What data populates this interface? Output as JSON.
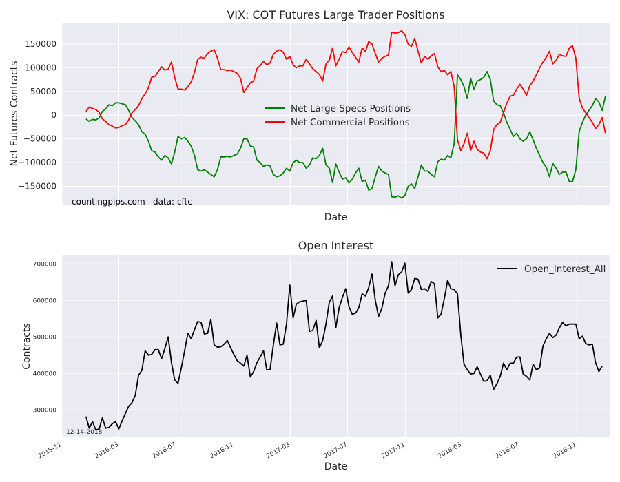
{
  "chart_data": [
    {
      "type": "line",
      "title": "VIX: COT Futures Large Trader Positions",
      "xlabel": "Date",
      "ylabel": "Net Futures Contracts",
      "ylim": [
        -190000,
        195000
      ],
      "xlim": [
        "2015-11-01",
        "2019-01-10"
      ],
      "yticks": [
        -150000,
        -100000,
        -50000,
        0,
        50000,
        100000,
        150000
      ],
      "ytick_labels": [
        "−150000",
        "−100000",
        "−50000",
        "0",
        "50000",
        "100000",
        "150000"
      ],
      "xticks": [
        "2015-11-01",
        "2016-03-01",
        "2016-07-01",
        "2016-11-01",
        "2017-03-01",
        "2017-07-01",
        "2017-11-01",
        "2018-03-01",
        "2018-07-01",
        "2018-11-01"
      ],
      "grid": true,
      "legend": "center",
      "annotations": [
        {
          "text": "countingpips.com",
          "x": "2015-11-12",
          "y": -190000
        },
        {
          "text": "data: cftc",
          "x": "2016-03-15",
          "y": -190000
        }
      ],
      "x_start": "2015-12-22",
      "x_step_days": 7,
      "series": [
        {
          "name": "Net Large Specs Positions",
          "color": "#008000",
          "values": [
            -8000,
            -13000,
            -9000,
            -10000,
            -6000,
            8000,
            13000,
            22000,
            20000,
            26000,
            26000,
            24000,
            22000,
            10000,
            -5000,
            -12000,
            -20000,
            -35000,
            -40000,
            -55000,
            -75000,
            -78000,
            -88000,
            -95000,
            -85000,
            -90000,
            -103000,
            -78000,
            -45000,
            -50000,
            -47000,
            -55000,
            -65000,
            -85000,
            -115000,
            -118000,
            -115000,
            -120000,
            -125000,
            -130000,
            -115000,
            -88000,
            -88000,
            -87000,
            -88000,
            -85000,
            -82000,
            -70000,
            -50000,
            -50000,
            -65000,
            -67000,
            -95000,
            -100000,
            -108000,
            -105000,
            -107000,
            -125000,
            -130000,
            -128000,
            -122000,
            -112000,
            -118000,
            -100000,
            -95000,
            -100000,
            -100000,
            -112000,
            -105000,
            -90000,
            -92000,
            -85000,
            -70000,
            -105000,
            -112000,
            -142000,
            -103000,
            -120000,
            -135000,
            -132000,
            -143000,
            -135000,
            -122000,
            -112000,
            -140000,
            -137000,
            -158000,
            -155000,
            -130000,
            -108000,
            -118000,
            -122000,
            -125000,
            -172000,
            -173000,
            -170000,
            -175000,
            -170000,
            -150000,
            -145000,
            -155000,
            -130000,
            -105000,
            -118000,
            -118000,
            -125000,
            -130000,
            -98000,
            -93000,
            -95000,
            -85000,
            -90000,
            -60000,
            85000,
            75000,
            60000,
            35000,
            78000,
            55000,
            72000,
            75000,
            80000,
            92000,
            75000,
            30000,
            22000,
            20000,
            5000,
            -15000,
            -30000,
            -45000,
            -38000,
            -50000,
            -55000,
            -50000,
            -35000,
            -52000,
            -70000,
            -85000,
            -100000,
            -110000,
            -130000,
            -102000,
            -112000,
            -125000,
            -120000,
            -120000,
            -140000,
            -140000,
            -115000,
            -35000,
            -15000,
            0,
            10000,
            20000,
            35000,
            28000,
            10000,
            40000
          ]
        },
        {
          "name": "Net Commercial Positions",
          "color": "#ff0000",
          "values": [
            8000,
            17000,
            14000,
            12000,
            6000,
            -8000,
            -13000,
            -20000,
            -23000,
            -27000,
            -26000,
            -22000,
            -20000,
            -10000,
            5000,
            12000,
            20000,
            35000,
            45000,
            58000,
            80000,
            82000,
            92000,
            102000,
            95000,
            97000,
            112000,
            80000,
            55000,
            55000,
            53000,
            60000,
            70000,
            90000,
            118000,
            122000,
            120000,
            130000,
            135000,
            138000,
            120000,
            96000,
            96000,
            94000,
            95000,
            92000,
            88000,
            78000,
            48000,
            58000,
            68000,
            72000,
            98000,
            104000,
            114000,
            106000,
            110000,
            128000,
            135000,
            138000,
            133000,
            118000,
            124000,
            106000,
            100000,
            104000,
            104000,
            118000,
            108000,
            98000,
            92000,
            86000,
            72000,
            108000,
            116000,
            142000,
            104000,
            118000,
            134000,
            132000,
            144000,
            132000,
            122000,
            112000,
            142000,
            134000,
            155000,
            150000,
            130000,
            112000,
            120000,
            124000,
            127000,
            175000,
            173000,
            174000,
            178000,
            170000,
            150000,
            145000,
            162000,
            135000,
            110000,
            124000,
            118000,
            125000,
            130000,
            102000,
            92000,
            94000,
            85000,
            92000,
            60000,
            -52000,
            -75000,
            -60000,
            -38000,
            -75000,
            -55000,
            -72000,
            -78000,
            -80000,
            -92000,
            -75000,
            -30000,
            -20000,
            -15000,
            5000,
            25000,
            40000,
            42000,
            55000,
            65000,
            55000,
            42000,
            62000,
            72000,
            85000,
            100000,
            112000,
            122000,
            135000,
            108000,
            116000,
            128000,
            125000,
            124000,
            142000,
            146000,
            120000,
            36000,
            15000,
            5000,
            -5000,
            -15000,
            -28000,
            -20000,
            -5000,
            -38000
          ]
        }
      ]
    },
    {
      "type": "line",
      "title": "Open Interest",
      "xlabel": "Date",
      "ylabel": "Contracts",
      "ylim": [
        225000,
        725000
      ],
      "xlim": [
        "2015-11-01",
        "2019-01-10"
      ],
      "yticks": [
        300000,
        400000,
        500000,
        600000,
        700000
      ],
      "ytick_labels": [
        "300000",
        "400000",
        "500000",
        "600000",
        "700000"
      ],
      "xticks": [
        "2015-11-01",
        "2016-03-01",
        "2016-07-01",
        "2016-11-01",
        "2017-03-01",
        "2017-07-01",
        "2017-11-01",
        "2018-03-01",
        "2018-07-01",
        "2018-11-01"
      ],
      "xtick_labels": [
        "2015-11",
        "2016-03",
        "2016-07",
        "2016-11",
        "2017-03",
        "2017-07",
        "2017-11",
        "2018-03",
        "2018-07",
        "2018-11"
      ],
      "grid": true,
      "legend": "top-right",
      "annotations": [
        {
          "text": "12-14-2018",
          "x": "2015-11-12",
          "y": 233000
        }
      ],
      "x_start": "2015-12-22",
      "x_step_days": 7,
      "series": [
        {
          "name": "Open_Interest_All",
          "color": "#000000",
          "values": [
            282000,
            250000,
            268000,
            245000,
            248000,
            278000,
            250000,
            252000,
            262000,
            268000,
            248000,
            270000,
            290000,
            310000,
            320000,
            340000,
            395000,
            408000,
            462000,
            450000,
            452000,
            465000,
            465000,
            440000,
            468000,
            500000,
            430000,
            382000,
            373000,
            415000,
            462000,
            510000,
            495000,
            520000,
            542000,
            540000,
            508000,
            510000,
            548000,
            478000,
            472000,
            473000,
            480000,
            490000,
            470000,
            452000,
            435000,
            428000,
            420000,
            450000,
            390000,
            405000,
            430000,
            445000,
            462000,
            410000,
            410000,
            478000,
            538000,
            478000,
            480000,
            535000,
            642000,
            552000,
            590000,
            596000,
            598000,
            600000,
            515000,
            518000,
            545000,
            470000,
            490000,
            535000,
            595000,
            612000,
            525000,
            580000,
            608000,
            632000,
            582000,
            562000,
            565000,
            580000,
            618000,
            612000,
            635000,
            672000,
            600000,
            556000,
            578000,
            620000,
            640000,
            706000,
            640000,
            670000,
            678000,
            702000,
            620000,
            630000,
            660000,
            658000,
            630000,
            632000,
            625000,
            652000,
            645000,
            552000,
            562000,
            605000,
            655000,
            632000,
            630000,
            618000,
            505000,
            425000,
            410000,
            398000,
            400000,
            418000,
            398000,
            378000,
            380000,
            395000,
            356000,
            372000,
            392000,
            428000,
            410000,
            428000,
            428000,
            445000,
            445000,
            398000,
            392000,
            382000,
            425000,
            410000,
            415000,
            475000,
            495000,
            510000,
            498000,
            505000,
            525000,
            540000,
            530000,
            535000,
            535000,
            535000,
            495000,
            502000,
            482000,
            478000,
            480000,
            430000,
            405000,
            420000
          ]
        }
      ]
    }
  ]
}
